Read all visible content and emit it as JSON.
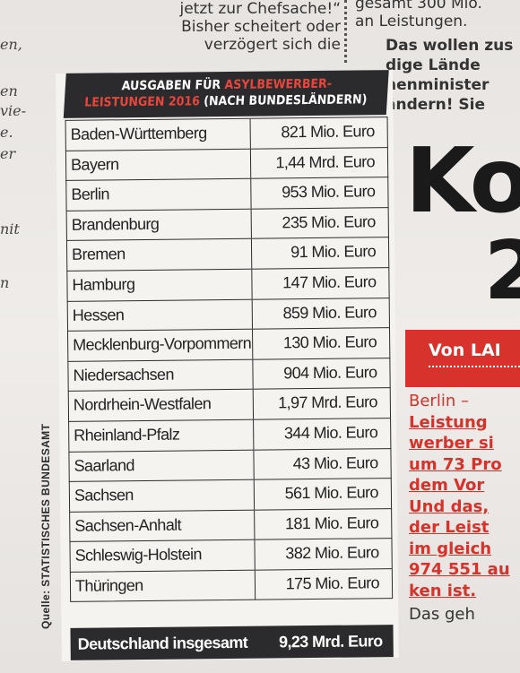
{
  "article_top_left": [
    "jetzt zur Chefsache!“",
    "Bisher scheitert oder",
    "verzögert sich die"
  ],
  "article_top_right": [
    "gesamt 300 Mio.",
    "an Leistungen."
  ],
  "article_top_right_bold": [
    "Das wollen zus",
    "dige Lände",
    "nenminister",
    "ändern! Sie"
  ],
  "left_margin": [
    "en,",
    "en",
    "vie-",
    "e.",
    "er",
    "nit",
    "n"
  ],
  "headline": [
    "Ko",
    "2"
  ],
  "byline": "Von LAI",
  "article_body": {
    "first": "Berlin –",
    "underlined": [
      "Leistung",
      "werber si",
      "um 73 Pro",
      "dem Vor",
      "Und das,",
      "der Leist",
      "im gleich",
      "974 551 au",
      "ken ist."
    ],
    "last": "Das geh"
  },
  "table": {
    "title_line1_a": "AUSGABEN FÜR ",
    "title_line1_b": "ASYLBEWERBER-",
    "title_line2_a": "LEISTUNGEN 2016",
    "title_line2_b": " (NACH BUNDESLÄNDERN)",
    "rows": [
      {
        "state": "Baden-Württemberg",
        "value": "821 Mio. Euro"
      },
      {
        "state": "Bayern",
        "value": "1,44 Mrd. Euro"
      },
      {
        "state": "Berlin",
        "value": "953 Mio. Euro"
      },
      {
        "state": "Brandenburg",
        "value": "235 Mio. Euro"
      },
      {
        "state": "Bremen",
        "value": "91 Mio. Euro"
      },
      {
        "state": "Hamburg",
        "value": "147 Mio. Euro"
      },
      {
        "state": "Hessen",
        "value": "859 Mio. Euro"
      },
      {
        "state": "Mecklenburg-Vorpommern",
        "value": "130 Mio. Euro"
      },
      {
        "state": "Niedersachsen",
        "value": "904 Mio. Euro"
      },
      {
        "state": "Nordrhein-Westfalen",
        "value": "1,97 Mrd. Euro"
      },
      {
        "state": "Rheinland-Pfalz",
        "value": "344 Mio. Euro"
      },
      {
        "state": "Saarland",
        "value": "43 Mio. Euro"
      },
      {
        "state": "Sachsen",
        "value": "561 Mio. Euro"
      },
      {
        "state": "Sachsen-Anhalt",
        "value": "181 Mio. Euro"
      },
      {
        "state": "Schleswig-Holstein",
        "value": "382 Mio. Euro"
      },
      {
        "state": "Thüringen",
        "value": "175 Mio. Euro"
      }
    ],
    "total_label": "Deutschland insgesamt",
    "total_value": "9,23 Mrd. Euro",
    "source": "Quelle: STATISTISCHES BUNDESAMT"
  }
}
